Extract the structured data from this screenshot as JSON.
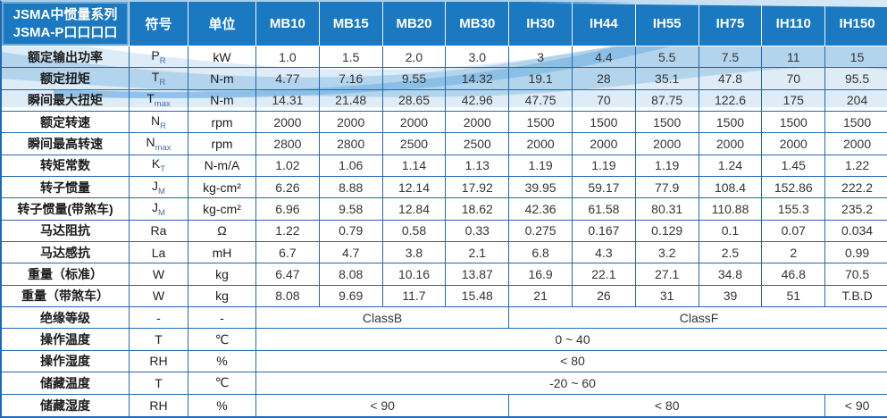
{
  "colors": {
    "header_bg": "#1b79c2",
    "header_text": "#ffffff",
    "grid_line": "#2368ae",
    "wave_light": "#ddecf7",
    "wave_mid": "#b3d4ed",
    "wave_accent": "#85bbe4"
  },
  "table": {
    "title_line1": "JSMA中惯量系列",
    "title_line2": "JSMA-P口口口口",
    "symbol_header": "符号",
    "unit_header": "单位",
    "models": [
      "MB10",
      "MB15",
      "MB20",
      "MB30",
      "IH30",
      "IH44",
      "IH55",
      "IH75",
      "IH110",
      "IH150"
    ],
    "rows": [
      {
        "label": "额定输出功率",
        "sym": "P",
        "sub": "R",
        "unit": "kW",
        "values": [
          "1.0",
          "1.5",
          "2.0",
          "3.0",
          "3",
          "4.4",
          "5.5",
          "7.5",
          "11",
          "15"
        ]
      },
      {
        "label": "额定扭矩",
        "sym": "T",
        "sub": "R",
        "unit": "N-m",
        "values": [
          "4.77",
          "7.16",
          "9.55",
          "14.32",
          "19.1",
          "28",
          "35.1",
          "47.8",
          "70",
          "95.5"
        ]
      },
      {
        "label": "瞬间最大扭矩",
        "sym": "T",
        "sub": "max",
        "unit": "N-m",
        "values": [
          "14.31",
          "21.48",
          "28.65",
          "42.96",
          "47.75",
          "70",
          "87.75",
          "122.6",
          "175",
          "204"
        ]
      },
      {
        "label": "额定转速",
        "sym": "N",
        "sub": "R",
        "unit": "rpm",
        "values": [
          "2000",
          "2000",
          "2000",
          "2000",
          "1500",
          "1500",
          "1500",
          "1500",
          "1500",
          "1500"
        ]
      },
      {
        "label": "瞬间最高转速",
        "sym": "N",
        "sub": "max",
        "unit": "rpm",
        "values": [
          "2800",
          "2800",
          "2500",
          "2500",
          "2000",
          "2000",
          "2000",
          "2000",
          "2000",
          "2000"
        ]
      },
      {
        "label": "转矩常数",
        "sym": "K",
        "sub": "T",
        "unit": "N-m/A",
        "values": [
          "1.02",
          "1.06",
          "1.14",
          "1.13",
          "1.19",
          "1.19",
          "1.19",
          "1.24",
          "1.45",
          "1.22"
        ]
      },
      {
        "label": "转子惯量",
        "sym": "J",
        "sub": "M",
        "unit": "kg-cm²",
        "values": [
          "6.26",
          "8.88",
          "12.14",
          "17.92",
          "39.95",
          "59.17",
          "77.9",
          "108.4",
          "152.86",
          "222.2"
        ]
      },
      {
        "label": "转子惯量(带煞车)",
        "sym": "J",
        "sub": "M",
        "unit": "kg-cm²",
        "values": [
          "6.96",
          "9.58",
          "12.84",
          "18.62",
          "42.36",
          "61.58",
          "80.31",
          "110.88",
          "155.3",
          "235.2"
        ]
      },
      {
        "label": "马达阻抗",
        "sym": "Ra",
        "sub": "",
        "unit": "Ω",
        "values": [
          "1.22",
          "0.79",
          "0.58",
          "0.33",
          "0.275",
          "0.167",
          "0.129",
          "0.1",
          "0.07",
          "0.034"
        ]
      },
      {
        "label": "马达感抗",
        "sym": "La",
        "sub": "",
        "unit": "mH",
        "values": [
          "6.7",
          "4.7",
          "3.8",
          "2.1",
          "6.8",
          "4.3",
          "3.2",
          "2.5",
          "2",
          "0.99"
        ]
      },
      {
        "label": "重量（标准）",
        "sym": "W",
        "sub": "",
        "unit": "kg",
        "values": [
          "6.47",
          "8.08",
          "10.16",
          "13.87",
          "16.9",
          "22.1",
          "27.1",
          "34.8",
          "46.8",
          "70.5"
        ]
      },
      {
        "label": "重量（带煞车）",
        "sym": "W",
        "sub": "",
        "unit": "kg",
        "values": [
          "8.08",
          "9.69",
          "11.7",
          "15.48",
          "21",
          "26",
          "31",
          "39",
          "51",
          "T.B.D"
        ]
      },
      {
        "label": "绝缘等级",
        "sym": "-",
        "sub": "",
        "unit": "-",
        "merged": [
          {
            "text": "ClassB",
            "span": 4
          },
          {
            "text": "ClassF",
            "span": 6
          }
        ]
      },
      {
        "label": "操作温度",
        "sym": "T",
        "sub": "",
        "unit": "℃",
        "merged": [
          {
            "text": "0 ~ 40",
            "span": 10
          }
        ]
      },
      {
        "label": "操作湿度",
        "sym": "RH",
        "sub": "",
        "unit": "%",
        "merged": [
          {
            "text": "< 80",
            "span": 10
          }
        ]
      },
      {
        "label": "储藏温度",
        "sym": "T",
        "sub": "",
        "unit": "℃",
        "merged": [
          {
            "text": "-20 ~ 60",
            "span": 10
          }
        ]
      },
      {
        "label": "储藏湿度",
        "sym": "RH",
        "sub": "",
        "unit": "%",
        "merged": [
          {
            "text": "< 90",
            "span": 4
          },
          {
            "text": "< 80",
            "span": 5
          },
          {
            "text": "< 90",
            "span": 1
          }
        ]
      }
    ]
  }
}
